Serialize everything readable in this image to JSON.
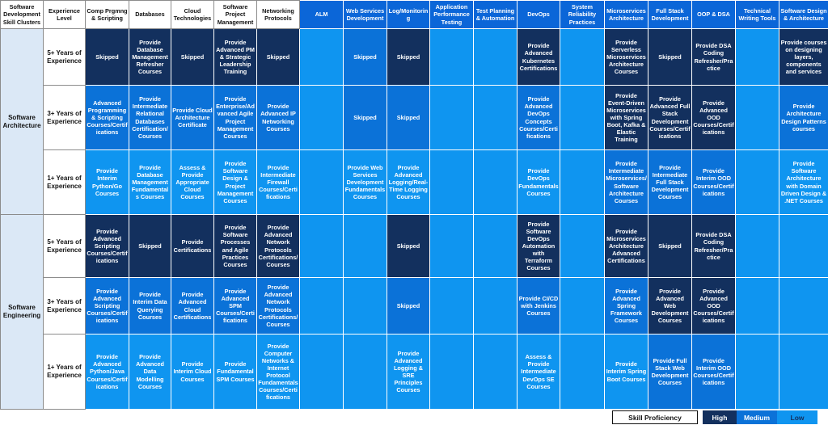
{
  "header": {
    "cluster_label": "Software Development Skill Clusters",
    "experience_label": "Experience Level",
    "columns": [
      {
        "label": "Comp Prgmng & Scripting",
        "style": "light"
      },
      {
        "label": "Databases",
        "style": "light"
      },
      {
        "label": "Cloud Technologies",
        "style": "light"
      },
      {
        "label": "Software Project Management",
        "style": "light"
      },
      {
        "label": "Networking Protocols",
        "style": "light"
      },
      {
        "label": "ALM",
        "style": "dark"
      },
      {
        "label": "Web Services Development",
        "style": "dark"
      },
      {
        "label": "Log/Monitoring",
        "style": "dark"
      },
      {
        "label": "Application Performance Testing",
        "style": "dark"
      },
      {
        "label": "Test Planning & Automation",
        "style": "dark"
      },
      {
        "label": "DevOps",
        "style": "dark"
      },
      {
        "label": "System Reliability Practices",
        "style": "dark"
      },
      {
        "label": "Microservices Architecture",
        "style": "dark"
      },
      {
        "label": "Full Stack Development",
        "style": "dark"
      },
      {
        "label": "OOP & DSA",
        "style": "dark"
      },
      {
        "label": "Technical Writing Tools",
        "style": "dark"
      },
      {
        "label": "Software Design & Architecture",
        "style": "dark"
      }
    ]
  },
  "clusters": [
    {
      "name": "Software Architecture",
      "rows": [
        {
          "experience": "5+ Years of Experience",
          "cells": [
            {
              "text": "Skipped",
              "level": "H"
            },
            {
              "text": "Provide Database Management Refresher Courses",
              "level": "H"
            },
            {
              "text": "Skipped",
              "level": "H"
            },
            {
              "text": "Provide Advanced PM & Strategic Leadership Training",
              "level": "H"
            },
            {
              "text": "Skipped",
              "level": "H"
            },
            {
              "text": "",
              "level": "E"
            },
            {
              "text": "Skipped",
              "level": "M"
            },
            {
              "text": "Skipped",
              "level": "H"
            },
            {
              "text": "",
              "level": "E"
            },
            {
              "text": "",
              "level": "E"
            },
            {
              "text": "Provide Advanced Kubernetes Certifications",
              "level": "H"
            },
            {
              "text": "",
              "level": "E"
            },
            {
              "text": "Provide Serverless Microservices Architecture Courses",
              "level": "H"
            },
            {
              "text": "Skipped",
              "level": "H"
            },
            {
              "text": "Provide DSA Coding Refresher/Practice",
              "level": "H"
            },
            {
              "text": "",
              "level": "E"
            },
            {
              "text": "Provide courses on designing layers, components and services",
              "level": "H"
            }
          ]
        },
        {
          "experience": "3+ Years of Experience",
          "cells": [
            {
              "text": "Advanced Programming & Scripting Courses/Certifications",
              "level": "M"
            },
            {
              "text": "Provide Intermediate Relational Databases Certification/ Courses",
              "level": "M"
            },
            {
              "text": "Provide Cloud Architecture Certificate",
              "level": "M"
            },
            {
              "text": "Provide Enterprise/Advanced Agile Project Management Courses",
              "level": "M"
            },
            {
              "text": "Provide Advanced IP Networking Courses",
              "level": "M"
            },
            {
              "text": "",
              "level": "E"
            },
            {
              "text": "Skipped",
              "level": "M"
            },
            {
              "text": "Skipped",
              "level": "M"
            },
            {
              "text": "",
              "level": "E"
            },
            {
              "text": "",
              "level": "E"
            },
            {
              "text": "Provide Advanced DevOps Concepts Courses/Certifications",
              "level": "M"
            },
            {
              "text": "",
              "level": "E"
            },
            {
              "text": "Provide Event-Driven Microservices with Spring Boot, Kafka & Elastic Training",
              "level": "H"
            },
            {
              "text": "Provide Advanced Full Stack Development Courses/Certifications",
              "level": "H"
            },
            {
              "text": "Provide Advanced OOD Courses/Certifications",
              "level": "H"
            },
            {
              "text": "",
              "level": "E"
            },
            {
              "text": "Provide Architecture Design Patterns courses",
              "level": "M"
            }
          ]
        },
        {
          "experience": "1+ Years of Experience",
          "cells": [
            {
              "text": "Provide Interim Python/Go Courses",
              "level": "L"
            },
            {
              "text": "Provide Database Management Fundamentals Courses",
              "level": "L"
            },
            {
              "text": "Assess & Provide Appropriate Cloud Courses",
              "level": "L"
            },
            {
              "text": "Provide Software Design & Project Management Courses",
              "level": "L"
            },
            {
              "text": "Provide Intermediate Firewall Courses/Certifications",
              "level": "L"
            },
            {
              "text": "",
              "level": "E"
            },
            {
              "text": "Provide Web Services Development Fundamentals Courses",
              "level": "L"
            },
            {
              "text": "Provide Advanced Logging/Real-Time Logging Courses",
              "level": "L"
            },
            {
              "text": "",
              "level": "E"
            },
            {
              "text": "",
              "level": "E"
            },
            {
              "text": "Provide DevOps Fundamentals Courses",
              "level": "L"
            },
            {
              "text": "",
              "level": "E"
            },
            {
              "text": "Provide Intermediate Microservices/Software Architecture Courses",
              "level": "M"
            },
            {
              "text": "Provide Intermediate Full Stack Development Courses",
              "level": "M"
            },
            {
              "text": "Provide Interim OOD Courses/Certifications",
              "level": "M"
            },
            {
              "text": "",
              "level": "E"
            },
            {
              "text": "Provide Software Architecture with Domain Driven Design & .NET Courses",
              "level": "L"
            }
          ]
        }
      ]
    },
    {
      "name": "Software Engineering",
      "rows": [
        {
          "experience": "5+ Years of Experience",
          "cells": [
            {
              "text": "Provide Advanced Scripting Courses/Certifications",
              "level": "H"
            },
            {
              "text": "Skipped",
              "level": "H"
            },
            {
              "text": "Provide Certifications",
              "level": "H"
            },
            {
              "text": "Provide Software Processes and Agile Practices Courses",
              "level": "H"
            },
            {
              "text": "Provide Advanced Network Protocols Certifications/Courses",
              "level": "H"
            },
            {
              "text": "",
              "level": "E"
            },
            {
              "text": "",
              "level": "E"
            },
            {
              "text": "Skipped",
              "level": "H"
            },
            {
              "text": "",
              "level": "E"
            },
            {
              "text": "",
              "level": "E"
            },
            {
              "text": "Provide Software DevOps Automation with Terraform Courses",
              "level": "H"
            },
            {
              "text": "",
              "level": "E"
            },
            {
              "text": "Provide Microservices Architecture Advanced Certifications",
              "level": "H"
            },
            {
              "text": "Skipped",
              "level": "H"
            },
            {
              "text": "Provide DSA Coding Refresher/Practice",
              "level": "H"
            },
            {
              "text": "",
              "level": "E"
            },
            {
              "text": "",
              "level": "E"
            }
          ]
        },
        {
          "experience": "3+ Years of Experience",
          "cells": [
            {
              "text": "Provide Advanced Scripting Courses/Certifications",
              "level": "M"
            },
            {
              "text": "Provide Interim Data Querying Courses",
              "level": "M"
            },
            {
              "text": "Provide Advanced Cloud Certifications",
              "level": "M"
            },
            {
              "text": "Provide Advanced SPM Courses/Certifications",
              "level": "M"
            },
            {
              "text": "Provide Advanced Network Protocols Certifications/Courses",
              "level": "M"
            },
            {
              "text": "",
              "level": "E"
            },
            {
              "text": "",
              "level": "E"
            },
            {
              "text": "Skipped",
              "level": "M"
            },
            {
              "text": "",
              "level": "E"
            },
            {
              "text": "",
              "level": "E"
            },
            {
              "text": "Provide CI/CD with Jenkins Courses",
              "level": "M"
            },
            {
              "text": "",
              "level": "E"
            },
            {
              "text": "Provide Advanced Spring Framework Courses",
              "level": "M"
            },
            {
              "text": "Provide Advanced Web Development Courses",
              "level": "H"
            },
            {
              "text": "Provide Advanced OOD Courses/Certifications",
              "level": "H"
            },
            {
              "text": "",
              "level": "E"
            },
            {
              "text": "",
              "level": "E"
            }
          ]
        },
        {
          "experience": "1+ Years of Experience",
          "cells": [
            {
              "text": "Provide Advanced Python/Java Courses/Certifications",
              "level": "L"
            },
            {
              "text": "Provide Advanced Data Modelling Courses",
              "level": "L"
            },
            {
              "text": "Provide Interim Cloud Courses",
              "level": "L"
            },
            {
              "text": "Provide Fundamental SPM Courses",
              "level": "L"
            },
            {
              "text": "Provide Computer Networks & Internet Protocol Fundamentals Courses/Certifications",
              "level": "L"
            },
            {
              "text": "",
              "level": "E"
            },
            {
              "text": "",
              "level": "E"
            },
            {
              "text": "Provide Advanced Logging & SRE Principles Courses",
              "level": "L"
            },
            {
              "text": "",
              "level": "E"
            },
            {
              "text": "",
              "level": "E"
            },
            {
              "text": "Assess & Provide Intermediate DevOps SE Courses",
              "level": "L"
            },
            {
              "text": "",
              "level": "E"
            },
            {
              "text": "Provide Interim Spring Boot Courses",
              "level": "L"
            },
            {
              "text": "Provide Full Stack Web Development Courses",
              "level": "M"
            },
            {
              "text": "Provide Interim OOD Courses/Certifications",
              "level": "M"
            },
            {
              "text": "",
              "level": "E"
            },
            {
              "text": "",
              "level": "E"
            }
          ]
        }
      ]
    }
  ],
  "legend": {
    "title": "Skill Proficiency",
    "high": "High",
    "medium": "Medium",
    "low": "Low"
  },
  "colors": {
    "high": "#13305e",
    "medium": "#0b72d8",
    "low": "#0f95f0",
    "header_dark": "#0b66d8",
    "cluster_bg": "#dbe8f6"
  }
}
